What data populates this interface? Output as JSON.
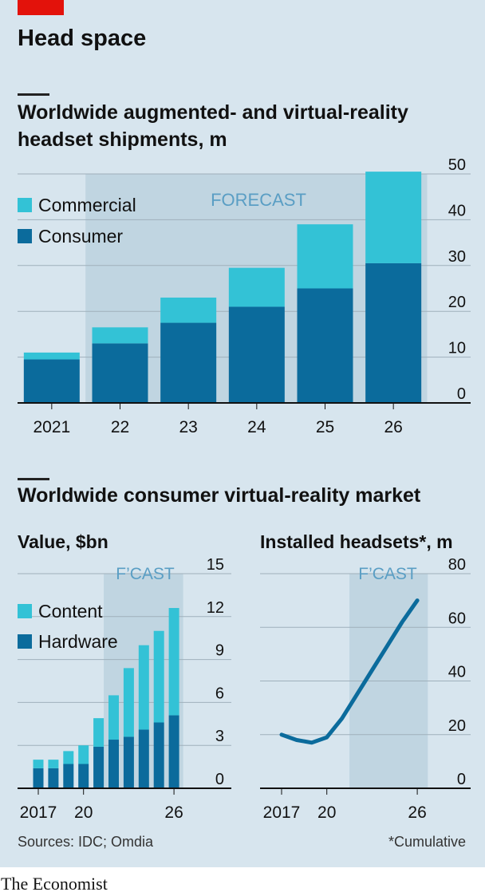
{
  "headline": "Head space",
  "source": "Sources: IDC; Omdia",
  "footnote": "*Cumulative",
  "brand": "The Economist",
  "colors": {
    "panel": "#d7e5ee",
    "forecast_shade": "#c0d5e1",
    "consumer": "#0b6b9c",
    "commercial": "#33c2d6",
    "grid": "#9fb0bb",
    "axis": "#111111",
    "forecast_label": "#5a9ec4",
    "brand_tag": "#e3120b"
  },
  "chart_data": [
    {
      "type": "bar",
      "stacked": true,
      "title": "Worldwide augmented- and virtual-reality headset shipments, m",
      "title_lines": [
        "Worldwide augmented- and virtual-reality",
        "headset shipments, m"
      ],
      "forecast_label": "FORECAST",
      "forecast_from": "22",
      "categories": [
        "2021",
        "22",
        "23",
        "24",
        "25",
        "26"
      ],
      "series": [
        {
          "name": "Consumer",
          "values": [
            9.5,
            13,
            17.5,
            21,
            25,
            30.5
          ]
        },
        {
          "name": "Commercial",
          "values": [
            1.5,
            3.5,
            5.5,
            8.5,
            14,
            20
          ]
        }
      ],
      "ylim": [
        0,
        50
      ],
      "yticks": [
        0,
        10,
        20,
        30,
        40,
        50
      ],
      "legend_position": "top-left",
      "grid": true
    },
    {
      "type": "bar",
      "stacked": true,
      "title": "Worldwide consumer virtual-reality market",
      "subtitle": "Value, $bn",
      "forecast_label": "F’CAST",
      "categories": [
        "2017",
        "2018",
        "2019",
        "2020",
        "2021",
        "2022",
        "2023",
        "2024",
        "2025",
        "2026"
      ],
      "x_tick_labels": [
        {
          "at": "2017",
          "label": "2017"
        },
        {
          "at": "2020",
          "label": "20"
        },
        {
          "at": "2026",
          "label": "26"
        }
      ],
      "forecast_from": "2022",
      "series": [
        {
          "name": "Hardware",
          "values": [
            1.4,
            1.4,
            1.7,
            1.7,
            2.9,
            3.4,
            3.6,
            4.1,
            4.6,
            5.1
          ]
        },
        {
          "name": "Content",
          "values": [
            0.6,
            0.6,
            0.9,
            1.3,
            2.0,
            3.1,
            4.8,
            5.9,
            6.4,
            7.5
          ]
        }
      ],
      "ylim": [
        0,
        15
      ],
      "yticks": [
        0,
        3,
        6,
        9,
        12,
        15
      ],
      "legend_position": "top-left",
      "grid": true
    },
    {
      "type": "line",
      "title": "Installed headsets*, m",
      "forecast_label": "F’CAST",
      "x": [
        2017,
        2018,
        2019,
        2020,
        2021,
        2022,
        2023,
        2024,
        2025,
        2026
      ],
      "x_tick_labels": [
        {
          "at": 2017,
          "label": "2017"
        },
        {
          "at": 2020,
          "label": "20"
        },
        {
          "at": 2026,
          "label": "26"
        }
      ],
      "forecast_range": [
        2021.5,
        2026.7
      ],
      "series": [
        {
          "values": [
            20,
            18,
            17,
            19,
            26,
            35,
            44,
            53,
            62,
            70
          ]
        }
      ],
      "ylim": [
        0,
        80
      ],
      "yticks": [
        0,
        20,
        40,
        60,
        80
      ],
      "grid": true
    }
  ]
}
